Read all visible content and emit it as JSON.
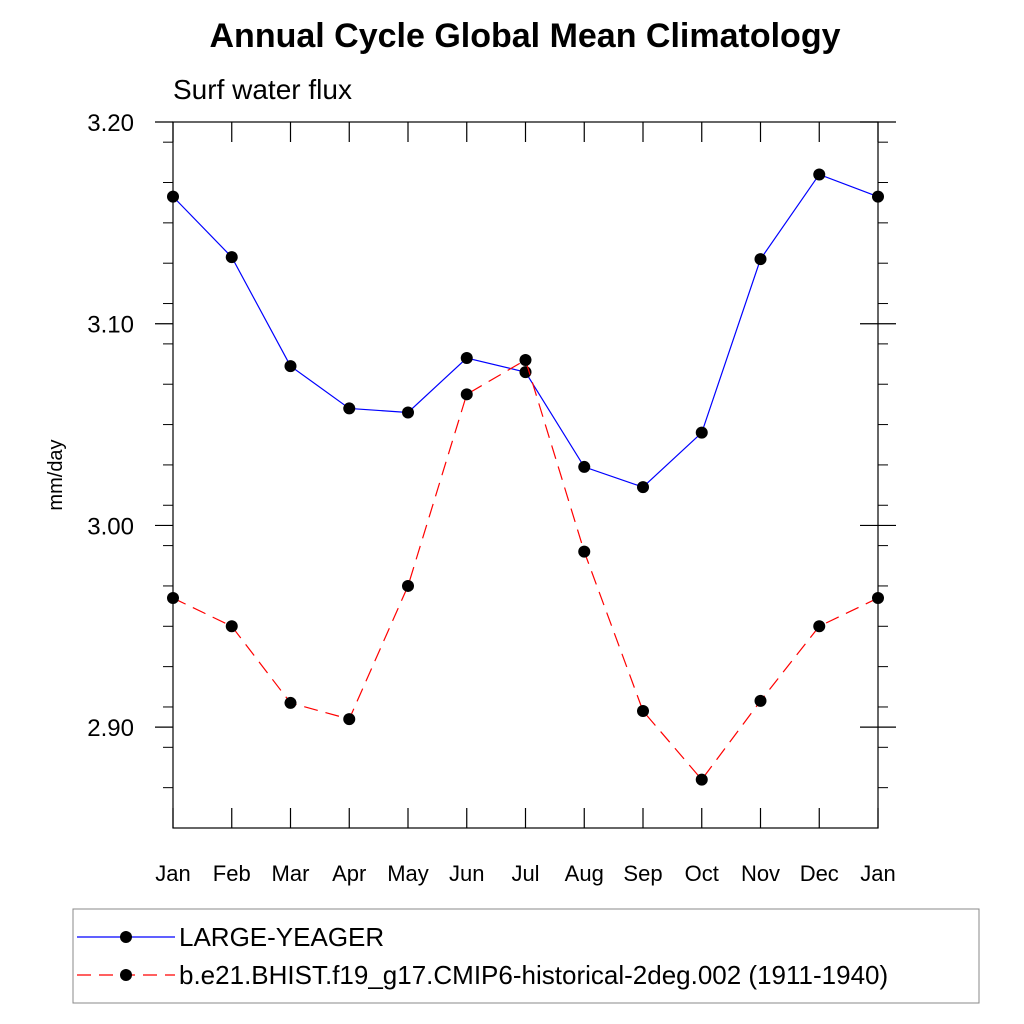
{
  "chart_data": {
    "type": "line",
    "title": "Annual Cycle Global Mean Climatology",
    "subtitle": "Surf water flux",
    "xlabel": "",
    "ylabel": "mm/day",
    "categories": [
      "Jan",
      "Feb",
      "Mar",
      "Apr",
      "May",
      "Jun",
      "Jul",
      "Aug",
      "Sep",
      "Oct",
      "Nov",
      "Dec",
      "Jan"
    ],
    "ylim": [
      2.85,
      3.2
    ],
    "yticks": [
      2.9,
      3.0,
      3.1,
      3.2
    ],
    "ytick_labels": [
      "2.90",
      "3.00",
      "3.10",
      "3.20"
    ],
    "y_minor_step": 0.02,
    "grid": false,
    "legend_position": "bottom",
    "series": [
      {
        "name": "LARGE-YEAGER",
        "color": "#0000ff",
        "line_style": "solid",
        "marker": "filled-circle",
        "values": [
          3.163,
          3.133,
          3.079,
          3.058,
          3.056,
          3.083,
          3.076,
          3.029,
          3.019,
          3.046,
          3.132,
          3.174,
          3.163
        ]
      },
      {
        "name": "b.e21.BHIST.f19_g17.CMIP6-historical-2deg.002 (1911-1940)",
        "color": "#ff0000",
        "line_style": "dashed",
        "marker": "filled-circle",
        "values": [
          2.964,
          2.95,
          2.912,
          2.904,
          2.97,
          3.065,
          3.082,
          2.987,
          2.908,
          2.874,
          2.913,
          2.95,
          2.964
        ]
      }
    ]
  }
}
